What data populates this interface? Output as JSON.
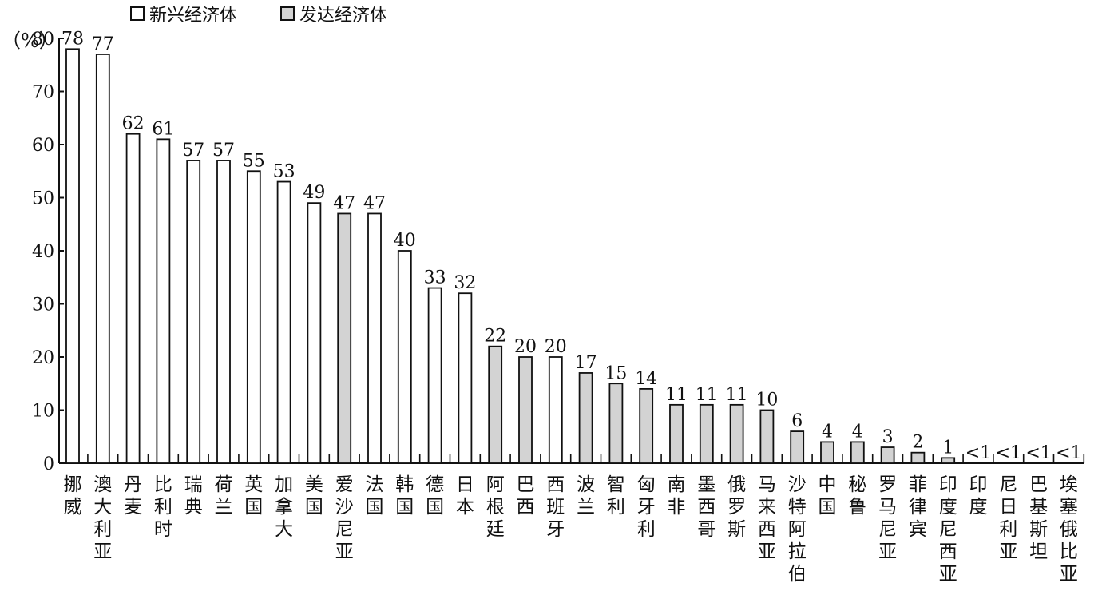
{
  "legend": {
    "emerging_label": "新兴经济体",
    "developed_label": "发达经济体"
  },
  "colors": {
    "emerging": "#ffffff",
    "developed": "#d3d3d3",
    "stroke": "#111111"
  },
  "chart_data": {
    "type": "bar",
    "ylabel": "（%）",
    "ylim": [
      0,
      80
    ],
    "yticks": [
      0,
      10,
      20,
      30,
      40,
      50,
      60,
      70,
      80
    ],
    "grid": false,
    "legend_position": "top",
    "series": [
      {
        "name": "新兴经济体"
      },
      {
        "name": "发达经济体"
      }
    ],
    "bars": [
      {
        "category": "挪威",
        "value": 78,
        "label": "78",
        "group": "新兴经济体"
      },
      {
        "category": "澳大利亚",
        "value": 77,
        "label": "77",
        "group": "新兴经济体"
      },
      {
        "category": "丹麦",
        "value": 62,
        "label": "62",
        "group": "新兴经济体"
      },
      {
        "category": "比利时",
        "value": 61,
        "label": "61",
        "group": "新兴经济体"
      },
      {
        "category": "瑞典",
        "value": 57,
        "label": "57",
        "group": "新兴经济体"
      },
      {
        "category": "荷兰",
        "value": 57,
        "label": "57",
        "group": "新兴经济体"
      },
      {
        "category": "英国",
        "value": 55,
        "label": "55",
        "group": "新兴经济体"
      },
      {
        "category": "加拿大",
        "value": 53,
        "label": "53",
        "group": "新兴经济体"
      },
      {
        "category": "美国",
        "value": 49,
        "label": "49",
        "group": "新兴经济体"
      },
      {
        "category": "爱沙尼亚",
        "value": 47,
        "label": "47",
        "group": "发达经济体"
      },
      {
        "category": "法国",
        "value": 47,
        "label": "47",
        "group": "新兴经济体"
      },
      {
        "category": "韩国",
        "value": 40,
        "label": "40",
        "group": "新兴经济体"
      },
      {
        "category": "德国",
        "value": 33,
        "label": "33",
        "group": "新兴经济体"
      },
      {
        "category": "日本",
        "value": 32,
        "label": "32",
        "group": "新兴经济体"
      },
      {
        "category": "阿根廷",
        "value": 22,
        "label": "22",
        "group": "发达经济体"
      },
      {
        "category": "巴西",
        "value": 20,
        "label": "20",
        "group": "发达经济体"
      },
      {
        "category": "西班牙",
        "value": 20,
        "label": "20",
        "group": "新兴经济体"
      },
      {
        "category": "波兰",
        "value": 17,
        "label": "17",
        "group": "发达经济体"
      },
      {
        "category": "智利",
        "value": 15,
        "label": "15",
        "group": "发达经济体"
      },
      {
        "category": "匈牙利",
        "value": 14,
        "label": "14",
        "group": "发达经济体"
      },
      {
        "category": "南非",
        "value": 11,
        "label": "11",
        "group": "发达经济体"
      },
      {
        "category": "墨西哥",
        "value": 11,
        "label": "11",
        "group": "发达经济体"
      },
      {
        "category": "俄罗斯",
        "value": 11,
        "label": "11",
        "group": "发达经济体"
      },
      {
        "category": "马来西亚",
        "value": 10,
        "label": "10",
        "group": "发达经济体"
      },
      {
        "category": "沙特阿拉伯",
        "value": 6,
        "label": "6",
        "group": "发达经济体"
      },
      {
        "category": "中国",
        "value": 4,
        "label": "4",
        "group": "发达经济体"
      },
      {
        "category": "秘鲁",
        "value": 4,
        "label": "4",
        "group": "发达经济体"
      },
      {
        "category": "罗马尼亚",
        "value": 3,
        "label": "3",
        "group": "发达经济体"
      },
      {
        "category": "菲律宾",
        "value": 2,
        "label": "2",
        "group": "发达经济体"
      },
      {
        "category": "印度尼西亚",
        "value": 1,
        "label": "1",
        "group": "发达经济体"
      },
      {
        "category": "印度",
        "value": 0,
        "label": "<1",
        "group": "发达经济体"
      },
      {
        "category": "尼日利亚",
        "value": 0,
        "label": "<1",
        "group": "发达经济体"
      },
      {
        "category": "巴基斯坦",
        "value": 0,
        "label": "<1",
        "group": "发达经济体"
      },
      {
        "category": "埃塞俄比亚",
        "value": 0,
        "label": "<1",
        "group": "发达经济体"
      }
    ]
  }
}
